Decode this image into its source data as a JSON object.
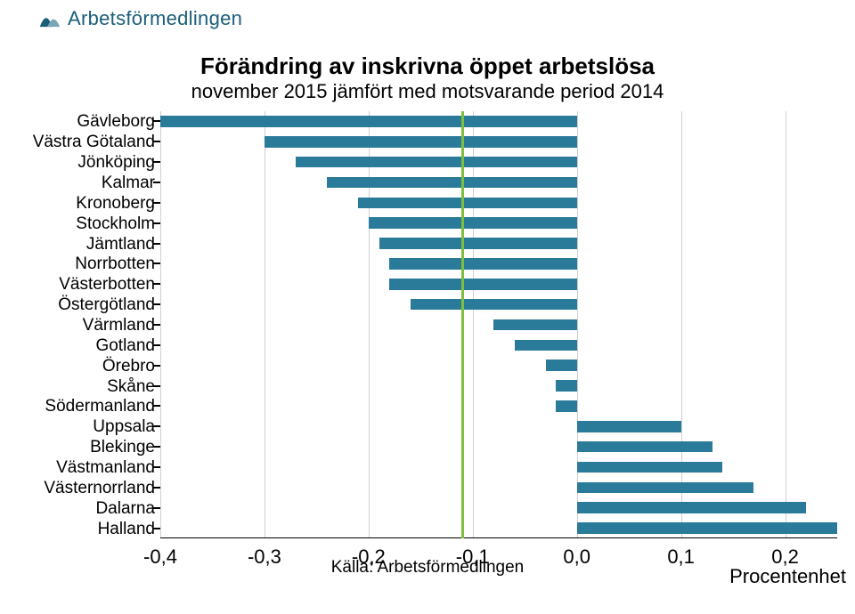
{
  "logo": {
    "text": "Arbetsförmedlingen",
    "color": "#1a5e7a"
  },
  "chart": {
    "type": "bar-horizontal",
    "title": "Förändring av inskrivna öppet arbetslösa",
    "subtitle": "november 2015 jämfört med motsvarande period 2014",
    "title_fontsize": 26,
    "subtitle_fontsize": 22,
    "bar_color": "#2a7a99",
    "background_color": "#ffffff",
    "grid_color": "#d0d0d0",
    "reference_line": {
      "value": -0.11,
      "color": "#7fbf3f",
      "width": 3
    },
    "xaxis": {
      "min": -0.4,
      "max": 0.25,
      "ticks": [
        -0.4,
        -0.3,
        -0.2,
        -0.1,
        0.0,
        0.1,
        0.2
      ],
      "tick_labels": [
        "-0,4",
        "-0,3",
        "-0,2",
        "-0,1",
        "0,0",
        "0,1",
        "0,2"
      ],
      "title": "Procentenhet",
      "label_fontsize": 22
    },
    "categories": [
      {
        "label": "Gävleborg",
        "value": -0.4
      },
      {
        "label": "Västra Götaland",
        "value": -0.3
      },
      {
        "label": "Jönköping",
        "value": -0.27
      },
      {
        "label": "Kalmar",
        "value": -0.24
      },
      {
        "label": "Kronoberg",
        "value": -0.21
      },
      {
        "label": "Stockholm",
        "value": -0.2
      },
      {
        "label": "Jämtland",
        "value": -0.19
      },
      {
        "label": "Norrbotten",
        "value": -0.18
      },
      {
        "label": "Västerbotten",
        "value": -0.18
      },
      {
        "label": "Östergötland",
        "value": -0.16
      },
      {
        "label": "Värmland",
        "value": -0.08
      },
      {
        "label": "Gotland",
        "value": -0.06
      },
      {
        "label": "Örebro",
        "value": -0.03
      },
      {
        "label": "Skåne",
        "value": -0.02
      },
      {
        "label": "Södermanland",
        "value": -0.02
      },
      {
        "label": "Uppsala",
        "value": 0.1
      },
      {
        "label": "Blekinge",
        "value": 0.13
      },
      {
        "label": "Västmanland",
        "value": 0.14
      },
      {
        "label": "Västernorrland",
        "value": 0.17
      },
      {
        "label": "Dalarna",
        "value": 0.22
      },
      {
        "label": "Halland",
        "value": 0.25
      }
    ],
    "category_label_fontsize": 19,
    "bar_height_ratio": 0.55,
    "source": "Källa: Arbetsförmedlingen"
  }
}
